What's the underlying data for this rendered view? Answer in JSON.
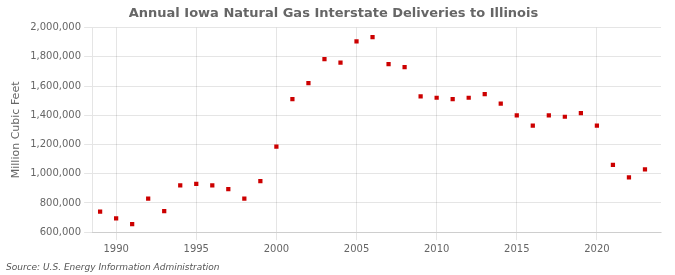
{
  "chart_data": {
    "type": "scatter",
    "title": "Annual Iowa Natural Gas Interstate Deliveries to Illinois",
    "ylabel": "Million Cubic Feet",
    "source": "Source: U.S. Energy Information Administration",
    "x": [
      1989,
      1990,
      1991,
      1992,
      1993,
      1994,
      1995,
      1996,
      1997,
      1998,
      1999,
      2000,
      2001,
      2002,
      2003,
      2004,
      2005,
      2006,
      2007,
      2008,
      2009,
      2010,
      2011,
      2012,
      2013,
      2014,
      2015,
      2016,
      2017,
      2018,
      2019,
      2020,
      2021,
      2022,
      2023
    ],
    "values": [
      740000,
      695000,
      655000,
      830000,
      745000,
      920000,
      930000,
      920000,
      895000,
      830000,
      950000,
      1185000,
      1510000,
      1620000,
      1785000,
      1760000,
      1905000,
      1935000,
      1750000,
      1730000,
      1530000,
      1520000,
      1510000,
      1520000,
      1545000,
      1480000,
      1400000,
      1330000,
      1400000,
      1390000,
      1415000,
      1330000,
      1060000,
      975000,
      1030000
    ],
    "color": "#cc0000",
    "marker": "square",
    "xlim": [
      1988.5,
      2024
    ],
    "xticks": [
      1990,
      1995,
      2000,
      2005,
      2010,
      2015,
      2020
    ],
    "ylim": [
      600000,
      2000000
    ],
    "yticks": [
      {
        "value": 600000,
        "label": "600,000"
      },
      {
        "value": 800000,
        "label": "800,000"
      },
      {
        "value": 1000000,
        "label": "1,000,000"
      },
      {
        "value": 1200000,
        "label": "1,200,000"
      },
      {
        "value": 1400000,
        "label": "1,400,000"
      },
      {
        "value": 1600000,
        "label": "1,600,000"
      },
      {
        "value": 1800000,
        "label": "1,800,000"
      },
      {
        "value": 2000000,
        "label": "2,000,000"
      }
    ],
    "grid": true
  }
}
